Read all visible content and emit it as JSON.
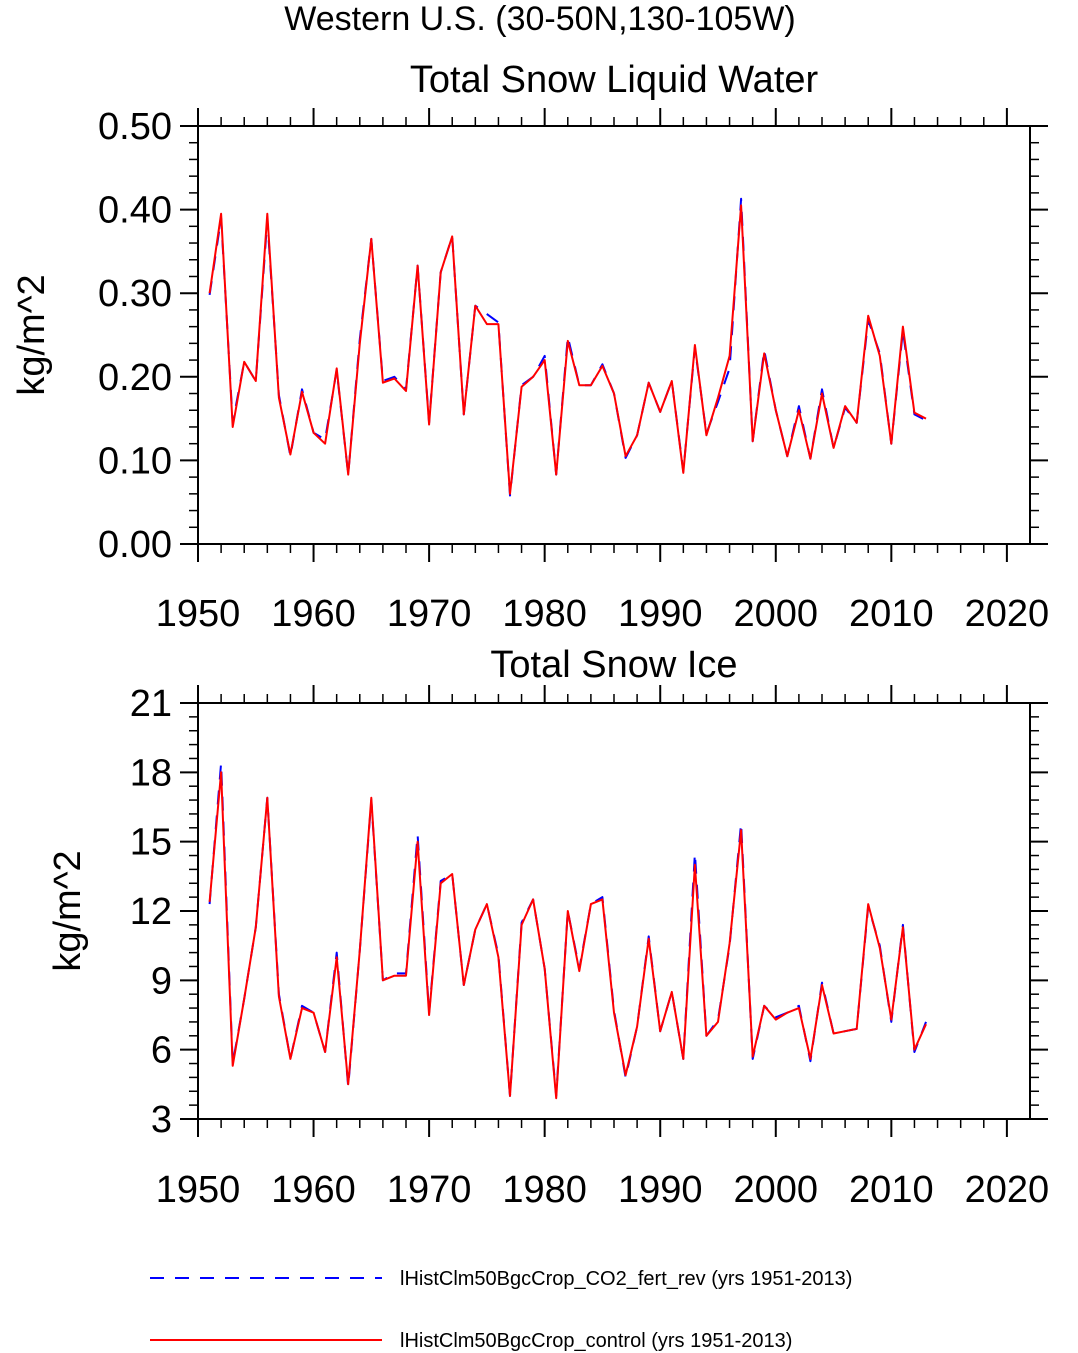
{
  "figure_title": "Western U.S. (30-50N,130-105W)",
  "colors": {
    "series_a": "#0000ff",
    "series_b": "#ff0000",
    "axes": "#000000"
  },
  "legend": {
    "entries": [
      {
        "label": "lHistClm50BgcCrop_CO2_fert_rev (yrs 1951-2013)",
        "style": "dashed",
        "color": "#0000ff"
      },
      {
        "label": "lHistClm50BgcCrop_control (yrs 1951-2013)",
        "style": "solid",
        "color": "#ff0000"
      }
    ]
  },
  "chart_data": [
    {
      "type": "line",
      "title": "Total Snow Liquid Water",
      "xlabel": "",
      "ylabel": "kg/m^2",
      "xlim": [
        1950,
        2022
      ],
      "ylim": [
        0.0,
        0.5
      ],
      "xticks": [
        1950,
        1960,
        1970,
        1980,
        1990,
        2000,
        2010,
        2020
      ],
      "yticks": [
        0.0,
        0.1,
        0.2,
        0.3,
        0.4,
        0.5
      ],
      "ytick_labels": [
        "0.00",
        "0.10",
        "0.20",
        "0.30",
        "0.40",
        "0.50"
      ],
      "grid": false,
      "x": [
        1951,
        1952,
        1953,
        1954,
        1955,
        1956,
        1957,
        1958,
        1959,
        1960,
        1961,
        1962,
        1963,
        1964,
        1965,
        1966,
        1967,
        1968,
        1969,
        1970,
        1971,
        1972,
        1973,
        1974,
        1975,
        1976,
        1977,
        1978,
        1979,
        1980,
        1981,
        1982,
        1983,
        1984,
        1985,
        1986,
        1987,
        1988,
        1989,
        1990,
        1991,
        1992,
        1993,
        1994,
        1995,
        1996,
        1997,
        1998,
        1999,
        2000,
        2001,
        2002,
        2003,
        2004,
        2005,
        2006,
        2007,
        2008,
        2009,
        2010,
        2011,
        2012,
        2013
      ],
      "series": [
        {
          "name": "lHistClm50BgcCrop_CO2_fert_rev (yrs 1951-2013)",
          "color": "#0000ff",
          "style": "dashed",
          "values": [
            0.298,
            0.39,
            0.145,
            0.218,
            0.195,
            0.388,
            0.178,
            0.105,
            0.185,
            0.133,
            0.125,
            0.208,
            0.083,
            0.245,
            0.365,
            0.195,
            0.2,
            0.185,
            0.333,
            0.145,
            0.325,
            0.368,
            0.155,
            0.285,
            0.275,
            0.265,
            0.058,
            0.19,
            0.2,
            0.225,
            0.083,
            0.248,
            0.19,
            0.19,
            0.215,
            0.18,
            0.103,
            0.13,
            0.193,
            0.158,
            0.195,
            0.087,
            0.235,
            0.132,
            0.17,
            0.21,
            0.413,
            0.123,
            0.232,
            0.16,
            0.105,
            0.165,
            0.102,
            0.185,
            0.115,
            0.163,
            0.145,
            0.268,
            0.228,
            0.12,
            0.255,
            0.155,
            0.148
          ]
        },
        {
          "name": "lHistClm50BgcCrop_control (yrs 1951-2013)",
          "color": "#ff0000",
          "style": "solid",
          "values": [
            0.3,
            0.395,
            0.14,
            0.218,
            0.195,
            0.395,
            0.175,
            0.107,
            0.182,
            0.133,
            0.12,
            0.21,
            0.083,
            0.24,
            0.365,
            0.193,
            0.198,
            0.183,
            0.333,
            0.143,
            0.325,
            0.368,
            0.155,
            0.285,
            0.263,
            0.263,
            0.06,
            0.188,
            0.2,
            0.22,
            0.083,
            0.243,
            0.19,
            0.19,
            0.213,
            0.18,
            0.105,
            0.13,
            0.193,
            0.158,
            0.195,
            0.085,
            0.238,
            0.13,
            0.175,
            0.225,
            0.405,
            0.123,
            0.228,
            0.16,
            0.105,
            0.16,
            0.102,
            0.18,
            0.115,
            0.165,
            0.145,
            0.273,
            0.225,
            0.12,
            0.26,
            0.157,
            0.15
          ]
        }
      ]
    },
    {
      "type": "line",
      "title": "Total Snow Ice",
      "xlabel": "",
      "ylabel": "kg/m^2",
      "xlim": [
        1950,
        2022
      ],
      "ylim": [
        3,
        21
      ],
      "xticks": [
        1950,
        1960,
        1970,
        1980,
        1990,
        2000,
        2010,
        2020
      ],
      "yticks": [
        3,
        6,
        9,
        12,
        15,
        18,
        21
      ],
      "ytick_labels": [
        "3",
        "6",
        "9",
        "12",
        "15",
        "18",
        "21"
      ],
      "grid": false,
      "x": [
        1951,
        1952,
        1953,
        1954,
        1955,
        1956,
        1957,
        1958,
        1959,
        1960,
        1961,
        1962,
        1963,
        1964,
        1965,
        1966,
        1967,
        1968,
        1969,
        1970,
        1971,
        1972,
        1973,
        1974,
        1975,
        1976,
        1977,
        1978,
        1979,
        1980,
        1981,
        1982,
        1983,
        1984,
        1985,
        1986,
        1987,
        1988,
        1989,
        1990,
        1991,
        1992,
        1993,
        1994,
        1995,
        1996,
        1997,
        1998,
        1999,
        2000,
        2001,
        2002,
        2003,
        2004,
        2005,
        2006,
        2007,
        2008,
        2009,
        2010,
        2011,
        2012,
        2013
      ],
      "series": [
        {
          "name": "lHistClm50BgcCrop_CO2_fert_rev (yrs 1951-2013)",
          "color": "#0000ff",
          "style": "dashed",
          "values": [
            12.3,
            18.4,
            5.4,
            8.2,
            11.3,
            16.9,
            8.4,
            5.6,
            7.9,
            7.6,
            5.9,
            10.2,
            4.4,
            10.3,
            16.8,
            9.0,
            9.3,
            9.3,
            15.3,
            7.6,
            13.3,
            13.6,
            8.8,
            11.2,
            12.3,
            10.1,
            4.0,
            11.5,
            12.5,
            9.5,
            4.0,
            12.0,
            9.5,
            12.3,
            12.6,
            7.7,
            4.8,
            7.0,
            10.9,
            6.8,
            8.5,
            5.6,
            14.5,
            6.6,
            7.3,
            10.5,
            15.8,
            5.6,
            7.9,
            7.4,
            7.6,
            7.9,
            5.5,
            8.9,
            6.7,
            6.8,
            6.9,
            12.2,
            10.5,
            7.2,
            11.4,
            5.9,
            7.2
          ]
        },
        {
          "name": "lHistClm50BgcCrop_control (yrs 1951-2013)",
          "color": "#ff0000",
          "style": "solid",
          "values": [
            12.4,
            18.0,
            5.3,
            8.2,
            11.3,
            16.9,
            8.3,
            5.6,
            7.8,
            7.6,
            5.9,
            10.0,
            4.5,
            10.3,
            16.9,
            9.0,
            9.2,
            9.2,
            15.0,
            7.5,
            13.2,
            13.6,
            8.8,
            11.2,
            12.3,
            10.0,
            4.0,
            11.4,
            12.5,
            9.5,
            3.9,
            12.0,
            9.4,
            12.3,
            12.5,
            7.6,
            4.9,
            7.0,
            10.8,
            6.8,
            8.5,
            5.6,
            14.0,
            6.6,
            7.2,
            10.6,
            15.5,
            5.7,
            7.9,
            7.3,
            7.6,
            7.8,
            5.6,
            8.8,
            6.7,
            6.8,
            6.9,
            12.3,
            10.4,
            7.3,
            11.3,
            6.0,
            7.1
          ]
        }
      ]
    }
  ]
}
